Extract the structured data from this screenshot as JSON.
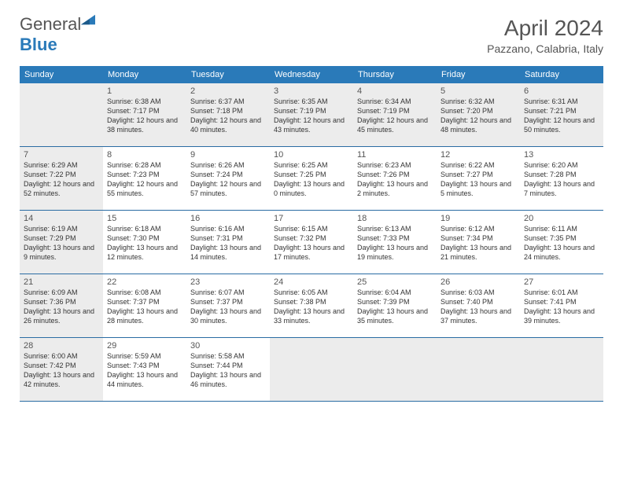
{
  "brand": {
    "part1": "General",
    "part2": "Blue"
  },
  "title": "April 2024",
  "location": "Pazzano, Calabria, Italy",
  "colors": {
    "accent": "#2a7ab9",
    "shade": "#ececec",
    "rule": "#2a6ca3"
  },
  "dayNames": [
    "Sunday",
    "Monday",
    "Tuesday",
    "Wednesday",
    "Thursday",
    "Friday",
    "Saturday"
  ],
  "weeks": [
    [
      {
        "n": "",
        "shade": true
      },
      {
        "n": "1",
        "shade": true,
        "sr": "6:38 AM",
        "ss": "7:17 PM",
        "dl": "12 hours and 38 minutes."
      },
      {
        "n": "2",
        "shade": true,
        "sr": "6:37 AM",
        "ss": "7:18 PM",
        "dl": "12 hours and 40 minutes."
      },
      {
        "n": "3",
        "shade": true,
        "sr": "6:35 AM",
        "ss": "7:19 PM",
        "dl": "12 hours and 43 minutes."
      },
      {
        "n": "4",
        "shade": true,
        "sr": "6:34 AM",
        "ss": "7:19 PM",
        "dl": "12 hours and 45 minutes."
      },
      {
        "n": "5",
        "shade": true,
        "sr": "6:32 AM",
        "ss": "7:20 PM",
        "dl": "12 hours and 48 minutes."
      },
      {
        "n": "6",
        "shade": true,
        "sr": "6:31 AM",
        "ss": "7:21 PM",
        "dl": "12 hours and 50 minutes."
      }
    ],
    [
      {
        "n": "7",
        "shade": true,
        "sr": "6:29 AM",
        "ss": "7:22 PM",
        "dl": "12 hours and 52 minutes."
      },
      {
        "n": "8",
        "sr": "6:28 AM",
        "ss": "7:23 PM",
        "dl": "12 hours and 55 minutes."
      },
      {
        "n": "9",
        "sr": "6:26 AM",
        "ss": "7:24 PM",
        "dl": "12 hours and 57 minutes."
      },
      {
        "n": "10",
        "sr": "6:25 AM",
        "ss": "7:25 PM",
        "dl": "13 hours and 0 minutes."
      },
      {
        "n": "11",
        "sr": "6:23 AM",
        "ss": "7:26 PM",
        "dl": "13 hours and 2 minutes."
      },
      {
        "n": "12",
        "sr": "6:22 AM",
        "ss": "7:27 PM",
        "dl": "13 hours and 5 minutes."
      },
      {
        "n": "13",
        "sr": "6:20 AM",
        "ss": "7:28 PM",
        "dl": "13 hours and 7 minutes."
      }
    ],
    [
      {
        "n": "14",
        "shade": true,
        "sr": "6:19 AM",
        "ss": "7:29 PM",
        "dl": "13 hours and 9 minutes."
      },
      {
        "n": "15",
        "sr": "6:18 AM",
        "ss": "7:30 PM",
        "dl": "13 hours and 12 minutes."
      },
      {
        "n": "16",
        "sr": "6:16 AM",
        "ss": "7:31 PM",
        "dl": "13 hours and 14 minutes."
      },
      {
        "n": "17",
        "sr": "6:15 AM",
        "ss": "7:32 PM",
        "dl": "13 hours and 17 minutes."
      },
      {
        "n": "18",
        "sr": "6:13 AM",
        "ss": "7:33 PM",
        "dl": "13 hours and 19 minutes."
      },
      {
        "n": "19",
        "sr": "6:12 AM",
        "ss": "7:34 PM",
        "dl": "13 hours and 21 minutes."
      },
      {
        "n": "20",
        "sr": "6:11 AM",
        "ss": "7:35 PM",
        "dl": "13 hours and 24 minutes."
      }
    ],
    [
      {
        "n": "21",
        "shade": true,
        "sr": "6:09 AM",
        "ss": "7:36 PM",
        "dl": "13 hours and 26 minutes."
      },
      {
        "n": "22",
        "sr": "6:08 AM",
        "ss": "7:37 PM",
        "dl": "13 hours and 28 minutes."
      },
      {
        "n": "23",
        "sr": "6:07 AM",
        "ss": "7:37 PM",
        "dl": "13 hours and 30 minutes."
      },
      {
        "n": "24",
        "sr": "6:05 AM",
        "ss": "7:38 PM",
        "dl": "13 hours and 33 minutes."
      },
      {
        "n": "25",
        "sr": "6:04 AM",
        "ss": "7:39 PM",
        "dl": "13 hours and 35 minutes."
      },
      {
        "n": "26",
        "sr": "6:03 AM",
        "ss": "7:40 PM",
        "dl": "13 hours and 37 minutes."
      },
      {
        "n": "27",
        "sr": "6:01 AM",
        "ss": "7:41 PM",
        "dl": "13 hours and 39 minutes."
      }
    ],
    [
      {
        "n": "28",
        "shade": true,
        "sr": "6:00 AM",
        "ss": "7:42 PM",
        "dl": "13 hours and 42 minutes."
      },
      {
        "n": "29",
        "sr": "5:59 AM",
        "ss": "7:43 PM",
        "dl": "13 hours and 44 minutes."
      },
      {
        "n": "30",
        "sr": "5:58 AM",
        "ss": "7:44 PM",
        "dl": "13 hours and 46 minutes."
      },
      {
        "n": "",
        "shade": true
      },
      {
        "n": "",
        "shade": true
      },
      {
        "n": "",
        "shade": true
      },
      {
        "n": "",
        "shade": true
      }
    ]
  ],
  "labels": {
    "sunrise": "Sunrise:",
    "sunset": "Sunset:",
    "daylight": "Daylight:"
  }
}
